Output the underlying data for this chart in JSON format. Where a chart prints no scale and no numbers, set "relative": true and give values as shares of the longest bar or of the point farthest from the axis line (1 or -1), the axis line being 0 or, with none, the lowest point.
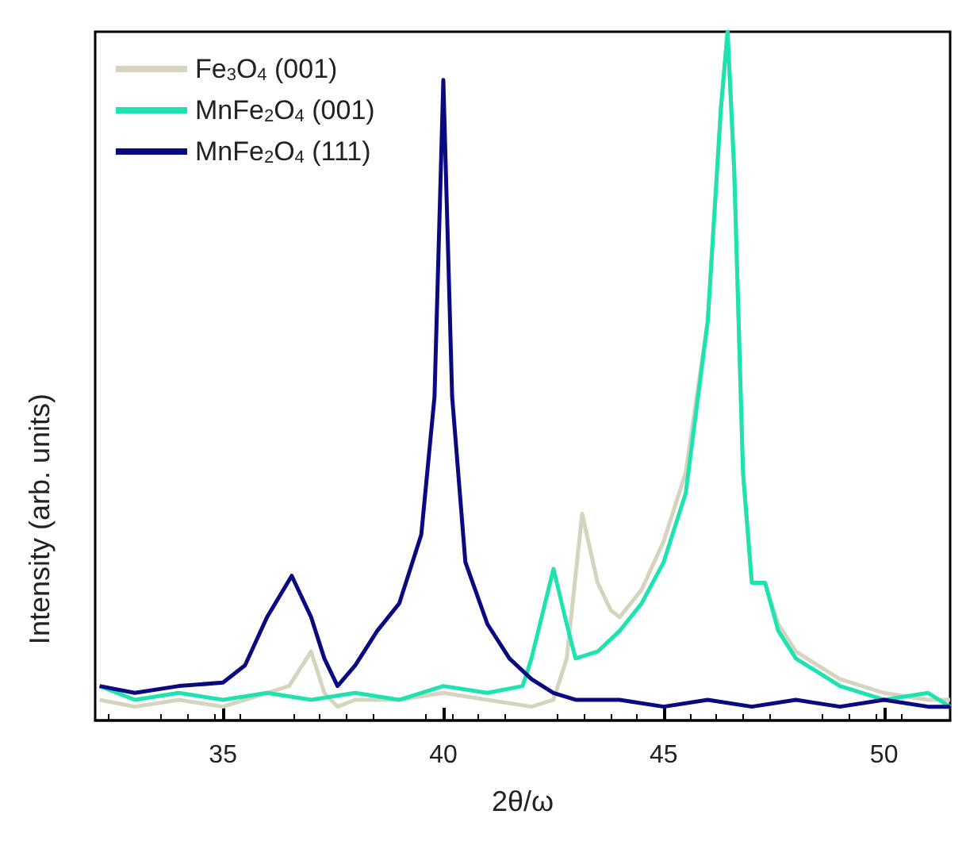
{
  "chart_data": {
    "type": "line",
    "xlabel": "2θ/ω",
    "ylabel": "Intensity (arb. units)",
    "relative": true,
    "xlim": [
      32.1,
      51.5
    ],
    "xticks": [
      35,
      40,
      45,
      50
    ],
    "grid": false,
    "legend": "top left",
    "marker": "none",
    "line_style": "solid",
    "series": [
      {
        "name": "Fe$_{3}$O$_{4}$ (001)",
        "color": "#d4d4bf",
        "x": [
          32.2,
          33,
          34,
          35,
          36,
          36.5,
          37,
          37.3,
          37.6,
          38,
          39,
          40,
          41,
          42,
          42.5,
          42.8,
          43.15,
          43.5,
          43.8,
          44,
          44.5,
          45,
          45.5,
          46,
          46.3,
          46.45,
          46.6,
          46.8,
          47,
          47.3,
          47.6,
          48,
          48.5,
          49,
          50,
          51,
          51.5
        ],
        "values": [
          0.03,
          0.02,
          0.03,
          0.02,
          0.04,
          0.05,
          0.1,
          0.04,
          0.02,
          0.03,
          0.03,
          0.04,
          0.03,
          0.02,
          0.03,
          0.09,
          0.3,
          0.2,
          0.16,
          0.15,
          0.19,
          0.26,
          0.36,
          0.58,
          0.89,
          1.0,
          0.8,
          0.36,
          0.2,
          0.2,
          0.14,
          0.1,
          0.08,
          0.06,
          0.04,
          0.03,
          0.03
        ]
      },
      {
        "name": "MnFe$_{2}$O$_{4}$ (001)",
        "color": "#1de3b0",
        "x": [
          32.2,
          33,
          34,
          35,
          36,
          37,
          38,
          39,
          40,
          41,
          41.8,
          42,
          42.5,
          42.8,
          43,
          43.5,
          44,
          44.5,
          45,
          45.5,
          46,
          46.3,
          46.45,
          46.6,
          46.8,
          47,
          47.3,
          47.6,
          48,
          48.5,
          49,
          50,
          51,
          51.5
        ],
        "values": [
          0.05,
          0.03,
          0.04,
          0.03,
          0.04,
          0.03,
          0.04,
          0.03,
          0.05,
          0.04,
          0.05,
          0.09,
          0.22,
          0.14,
          0.09,
          0.1,
          0.13,
          0.17,
          0.23,
          0.33,
          0.58,
          0.89,
          1.0,
          0.8,
          0.36,
          0.2,
          0.2,
          0.13,
          0.09,
          0.07,
          0.05,
          0.03,
          0.04,
          0.02
        ]
      },
      {
        "name": "MnFe$_{2}$O$_{4}$ (111)",
        "color": "#0a0a80",
        "x": [
          32.2,
          33,
          34,
          35,
          35.5,
          36,
          36.56,
          37,
          37.3,
          37.6,
          38,
          38.5,
          39,
          39.5,
          39.8,
          40,
          40.2,
          40.5,
          41,
          41.5,
          42,
          42.5,
          43,
          44,
          45,
          46,
          47,
          48,
          49,
          50,
          51,
          51.5
        ],
        "values": [
          0.05,
          0.04,
          0.05,
          0.055,
          0.08,
          0.15,
          0.21,
          0.15,
          0.09,
          0.05,
          0.08,
          0.13,
          0.17,
          0.27,
          0.47,
          0.93,
          0.47,
          0.23,
          0.14,
          0.09,
          0.06,
          0.04,
          0.03,
          0.03,
          0.02,
          0.03,
          0.02,
          0.03,
          0.02,
          0.03,
          0.02,
          0.02
        ]
      }
    ]
  }
}
